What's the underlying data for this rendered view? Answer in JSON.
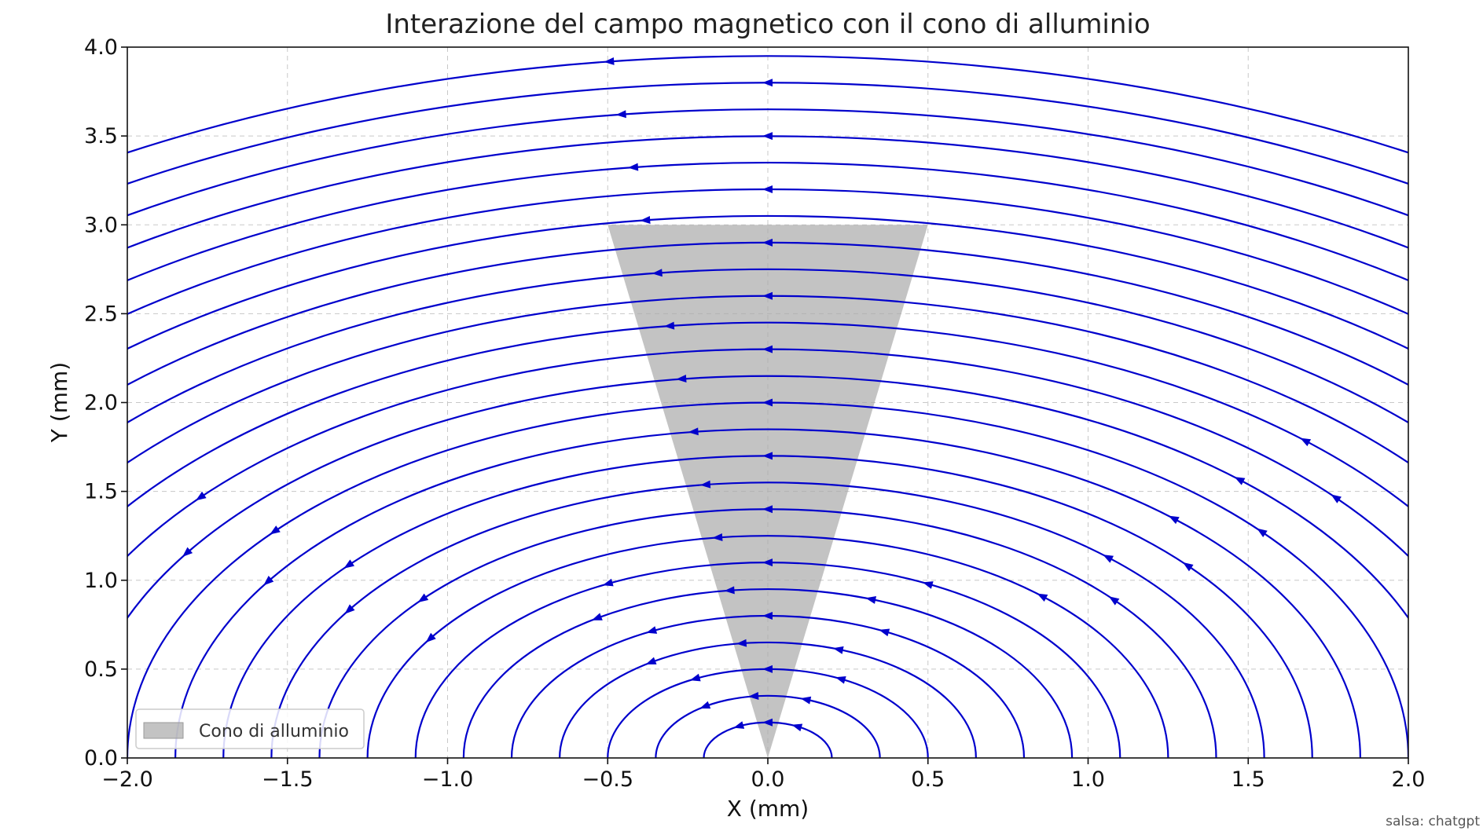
{
  "chart_data": {
    "type": "streamplot",
    "title": "Interazione del campo magnetico con il cono di alluminio",
    "xlabel": "X (mm)",
    "ylabel": "Y (mm)",
    "xlim": [
      -2.0,
      2.0
    ],
    "ylim": [
      0.0,
      4.0
    ],
    "x_ticks": [
      -2.0,
      -1.5,
      -1.0,
      -0.5,
      0.0,
      0.5,
      1.0,
      1.5,
      2.0
    ],
    "x_tick_labels": [
      "−2.0",
      "−1.5",
      "−1.0",
      "−0.5",
      "0.0",
      "0.5",
      "1.0",
      "1.5",
      "2.0"
    ],
    "y_ticks": [
      0.0,
      0.5,
      1.0,
      1.5,
      2.0,
      2.5,
      3.0,
      3.5,
      4.0
    ],
    "y_tick_labels": [
      "0.0",
      "0.5",
      "1.0",
      "1.5",
      "2.0",
      "2.5",
      "3.0",
      "3.5",
      "4.0"
    ],
    "grid": true,
    "field": {
      "description": "concentric circular field lines centred at the origin, flowing counter-clockwise",
      "center": [
        0.0,
        0.0
      ],
      "radii": [
        0.2,
        0.35,
        0.5,
        0.65,
        0.8,
        0.95,
        1.1,
        1.25,
        1.4,
        1.55,
        1.7,
        1.85,
        2.0,
        2.15,
        2.3,
        2.45,
        2.6,
        2.75,
        2.9,
        3.05,
        3.2,
        3.35,
        3.5,
        3.65,
        3.8,
        3.95
      ],
      "direction": "counter-clockwise",
      "color": "#0000cc"
    },
    "cone": {
      "name": "Cono di alluminio",
      "vertices": [
        [
          0.0,
          0.0
        ],
        [
          -0.5,
          3.0
        ],
        [
          0.5,
          3.0
        ]
      ],
      "color": "#aaaaaa"
    },
    "legend": {
      "placement": "lower-left",
      "entries": [
        "Cono di alluminio"
      ]
    }
  },
  "watermark": "salsa: chatgpt"
}
